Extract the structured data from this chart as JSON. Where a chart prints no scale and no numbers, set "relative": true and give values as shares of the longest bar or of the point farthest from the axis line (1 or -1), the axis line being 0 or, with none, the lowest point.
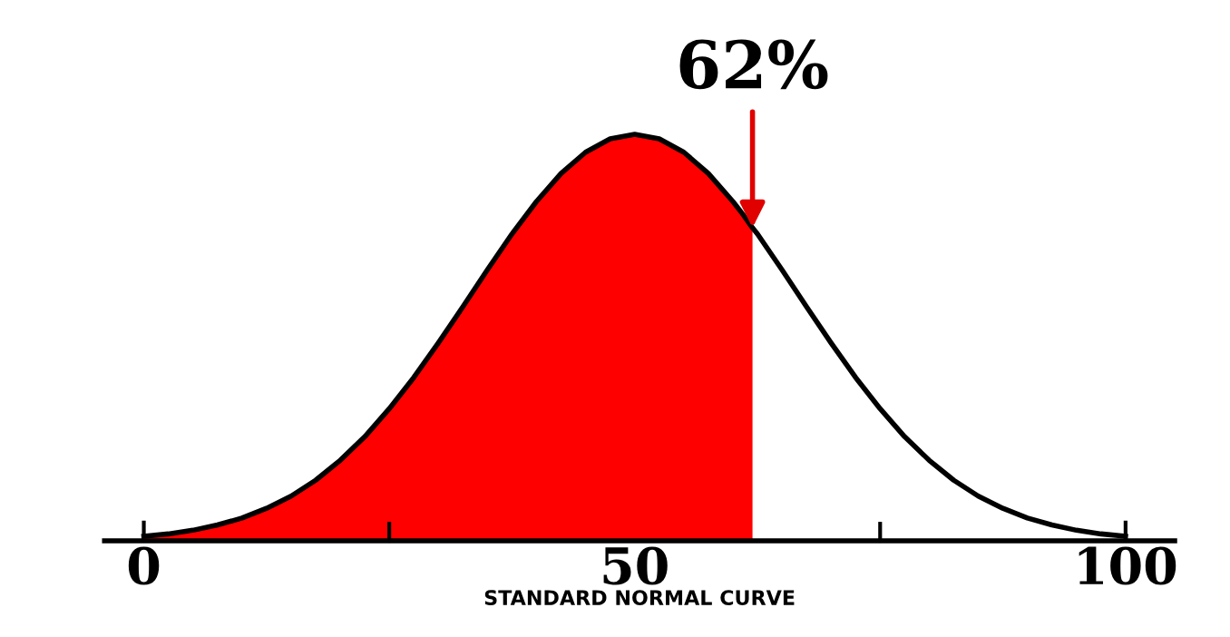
{
  "chart_data": {
    "type": "line",
    "relative": true,
    "xlabel": "STANDARD NORMAL CURVE",
    "xlim": [
      -4,
      105
    ],
    "xticks": [
      0,
      {
        "value": 25,
        "label": null
      },
      50,
      {
        "value": 75,
        "label": null
      },
      100
    ],
    "grid": false,
    "legend": false,
    "marker": "none",
    "line_style": "solid",
    "series": [
      {
        "type": "area",
        "color": "#ff0000",
        "x": [
          0,
          2.5,
          5,
          7.5,
          10,
          12.5,
          15,
          17.5,
          20,
          22.5,
          25,
          27.5,
          30,
          32.5,
          35,
          37.5,
          40,
          42.5,
          45,
          47.5,
          50,
          52.5,
          55,
          57.5,
          60,
          61,
          62
        ],
        "values": [
          0.011,
          0.017,
          0.026,
          0.039,
          0.056,
          0.08,
          0.11,
          0.149,
          0.198,
          0.256,
          0.325,
          0.402,
          0.487,
          0.576,
          0.667,
          0.755,
          0.835,
          0.904,
          0.956,
          0.989,
          1,
          0.989,
          0.956,
          0.904,
          0.835,
          0.804,
          0.77
        ]
      },
      {
        "color": "#000000",
        "x": [
          0,
          2.5,
          5,
          7.5,
          10,
          12.5,
          15,
          17.5,
          20,
          22.5,
          25,
          27.5,
          30,
          32.5,
          35,
          37.5,
          40,
          42.5,
          45,
          47.5,
          50,
          52.5,
          55,
          57.5,
          60,
          61,
          62,
          62.5,
          65,
          67.5,
          70,
          72.5,
          75,
          77.5,
          80,
          82.5,
          85,
          87.5,
          90,
          92.5,
          95,
          97.5,
          100
        ],
        "values": [
          0.011,
          0.017,
          0.026,
          0.039,
          0.056,
          0.08,
          0.11,
          0.149,
          0.198,
          0.256,
          0.325,
          0.402,
          0.487,
          0.576,
          0.667,
          0.755,
          0.835,
          0.904,
          0.956,
          0.989,
          1,
          0.989,
          0.956,
          0.904,
          0.835,
          0.804,
          0.77,
          0.755,
          0.667,
          0.576,
          0.487,
          0.402,
          0.325,
          0.256,
          0.198,
          0.149,
          0.11,
          0.08,
          0.056,
          0.039,
          0.026,
          0.017,
          0.011
        ]
      }
    ],
    "annotations": [
      {
        "text": "62%",
        "x": 62,
        "y": 0.77
      }
    ]
  }
}
